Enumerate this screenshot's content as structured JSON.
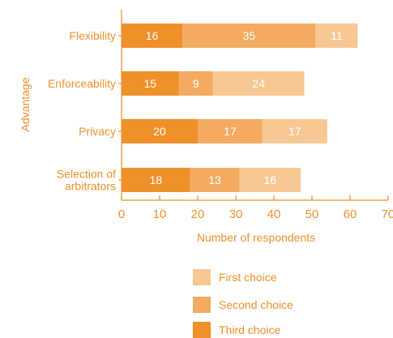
{
  "chart_data": {
    "type": "bar",
    "orientation": "horizontal",
    "stacked": true,
    "categories": [
      "Flexibility",
      "Enforceability",
      "Privacy",
      "Selection of arbitrators"
    ],
    "category_lines": [
      [
        "Flexibility"
      ],
      [
        "Enforceability"
      ],
      [
        "Privacy"
      ],
      [
        "Selection of",
        "arbitrators"
      ]
    ],
    "series": [
      {
        "name": "Third choice",
        "values": [
          16,
          15,
          20,
          18
        ],
        "color": "#f0902a"
      },
      {
        "name": "Second choice",
        "values": [
          35,
          9,
          17,
          13
        ],
        "color": "#f3ab62"
      },
      {
        "name": "First choice",
        "values": [
          11,
          24,
          17,
          16
        ],
        "color": "#f8c892"
      }
    ],
    "legend_order": [
      "First choice",
      "Second choice",
      "Third choice"
    ],
    "xlabel": "Number of respondents",
    "ylabel": "Advantage",
    "xlim": [
      0,
      70
    ],
    "xticks": [
      0,
      10,
      20,
      30,
      40,
      50,
      60,
      70
    ],
    "grid": false,
    "legend_position": "bottom",
    "colors": {
      "text": "#f0902a",
      "axis": "#f0902a",
      "data_label": "#ffffff"
    }
  }
}
